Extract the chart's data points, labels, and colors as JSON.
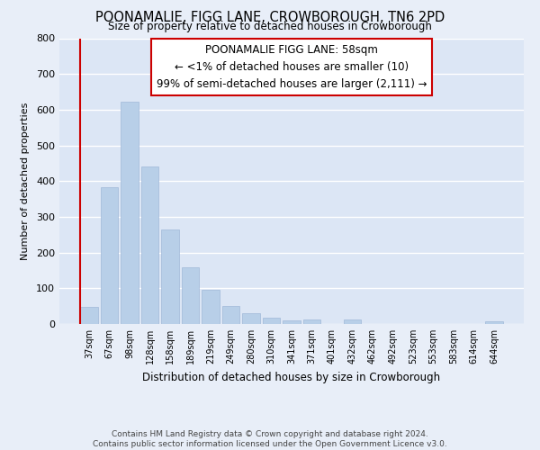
{
  "title": "POONAMALIE, FIGG LANE, CROWBOROUGH, TN6 2PD",
  "subtitle": "Size of property relative to detached houses in Crowborough",
  "xlabel": "Distribution of detached houses by size in Crowborough",
  "ylabel": "Number of detached properties",
  "bar_labels": [
    "37sqm",
    "67sqm",
    "98sqm",
    "128sqm",
    "158sqm",
    "189sqm",
    "219sqm",
    "249sqm",
    "280sqm",
    "310sqm",
    "341sqm",
    "371sqm",
    "401sqm",
    "432sqm",
    "462sqm",
    "492sqm",
    "523sqm",
    "553sqm",
    "583sqm",
    "614sqm",
    "644sqm"
  ],
  "bar_values": [
    47,
    383,
    622,
    440,
    265,
    158,
    95,
    50,
    30,
    17,
    10,
    12,
    0,
    12,
    0,
    0,
    0,
    0,
    0,
    0,
    7
  ],
  "bar_color": "#b8cfe8",
  "bar_edge_color": "#a0b8d8",
  "vline_color": "#cc0000",
  "ylim": [
    0,
    800
  ],
  "yticks": [
    0,
    100,
    200,
    300,
    400,
    500,
    600,
    700,
    800
  ],
  "annotation_title": "POONAMALIE FIGG LANE: 58sqm",
  "annotation_line1": "← <1% of detached houses are smaller (10)",
  "annotation_line2": "99% of semi-detached houses are larger (2,111) →",
  "footer_line1": "Contains HM Land Registry data © Crown copyright and database right 2024.",
  "footer_line2": "Contains public sector information licensed under the Open Government Licence v3.0.",
  "bg_color": "#e8eef8",
  "plot_bg_color": "#dce6f5",
  "grid_color": "#ffffff"
}
